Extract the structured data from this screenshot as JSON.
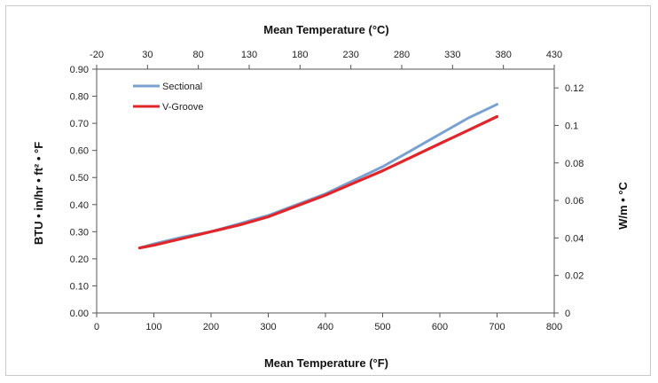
{
  "chart_data": {
    "type": "line",
    "title": "",
    "xlabel": "Mean Temperature  (°F)",
    "ylabel": "BTU • in/hr • ft² • °F",
    "x2label": "Mean Temperature  (°C)",
    "y2label": "W/m • °C",
    "xlim": [
      0,
      800
    ],
    "ylim": [
      0,
      0.9
    ],
    "x2lim": [
      -20,
      430
    ],
    "y2lim": [
      0,
      0.13
    ],
    "x_ticks": [
      0,
      100,
      200,
      300,
      400,
      500,
      600,
      700,
      800
    ],
    "y_ticks": [
      "0.00",
      "0.10",
      "0.20",
      "0.30",
      "0.40",
      "0.50",
      "0.60",
      "0.70",
      "0.80",
      "0.90"
    ],
    "x2_ticks": [
      -20,
      30,
      80,
      130,
      180,
      230,
      280,
      330,
      380,
      430
    ],
    "y2_ticks": [
      "0",
      "0.02",
      "0.04",
      "0.06",
      "0.08",
      "0.1",
      "0.12"
    ],
    "grid": false,
    "legend": "top-left",
    "series": [
      {
        "name": "Sectional",
        "color": "#7aa2d0",
        "x": [
          75,
          100,
          150,
          200,
          250,
          300,
          350,
          400,
          450,
          500,
          550,
          600,
          650,
          700
        ],
        "y": [
          0.24,
          0.255,
          0.28,
          0.3,
          0.33,
          0.36,
          0.4,
          0.44,
          0.49,
          0.54,
          0.6,
          0.66,
          0.72,
          0.77
        ]
      },
      {
        "name": "V-Groove",
        "color": "#e0262a",
        "x": [
          75,
          100,
          150,
          200,
          250,
          300,
          350,
          400,
          450,
          500,
          550,
          600,
          650,
          700
        ],
        "y": [
          0.24,
          0.25,
          0.275,
          0.3,
          0.325,
          0.355,
          0.395,
          0.435,
          0.48,
          0.525,
          0.575,
          0.625,
          0.675,
          0.725
        ]
      }
    ]
  }
}
